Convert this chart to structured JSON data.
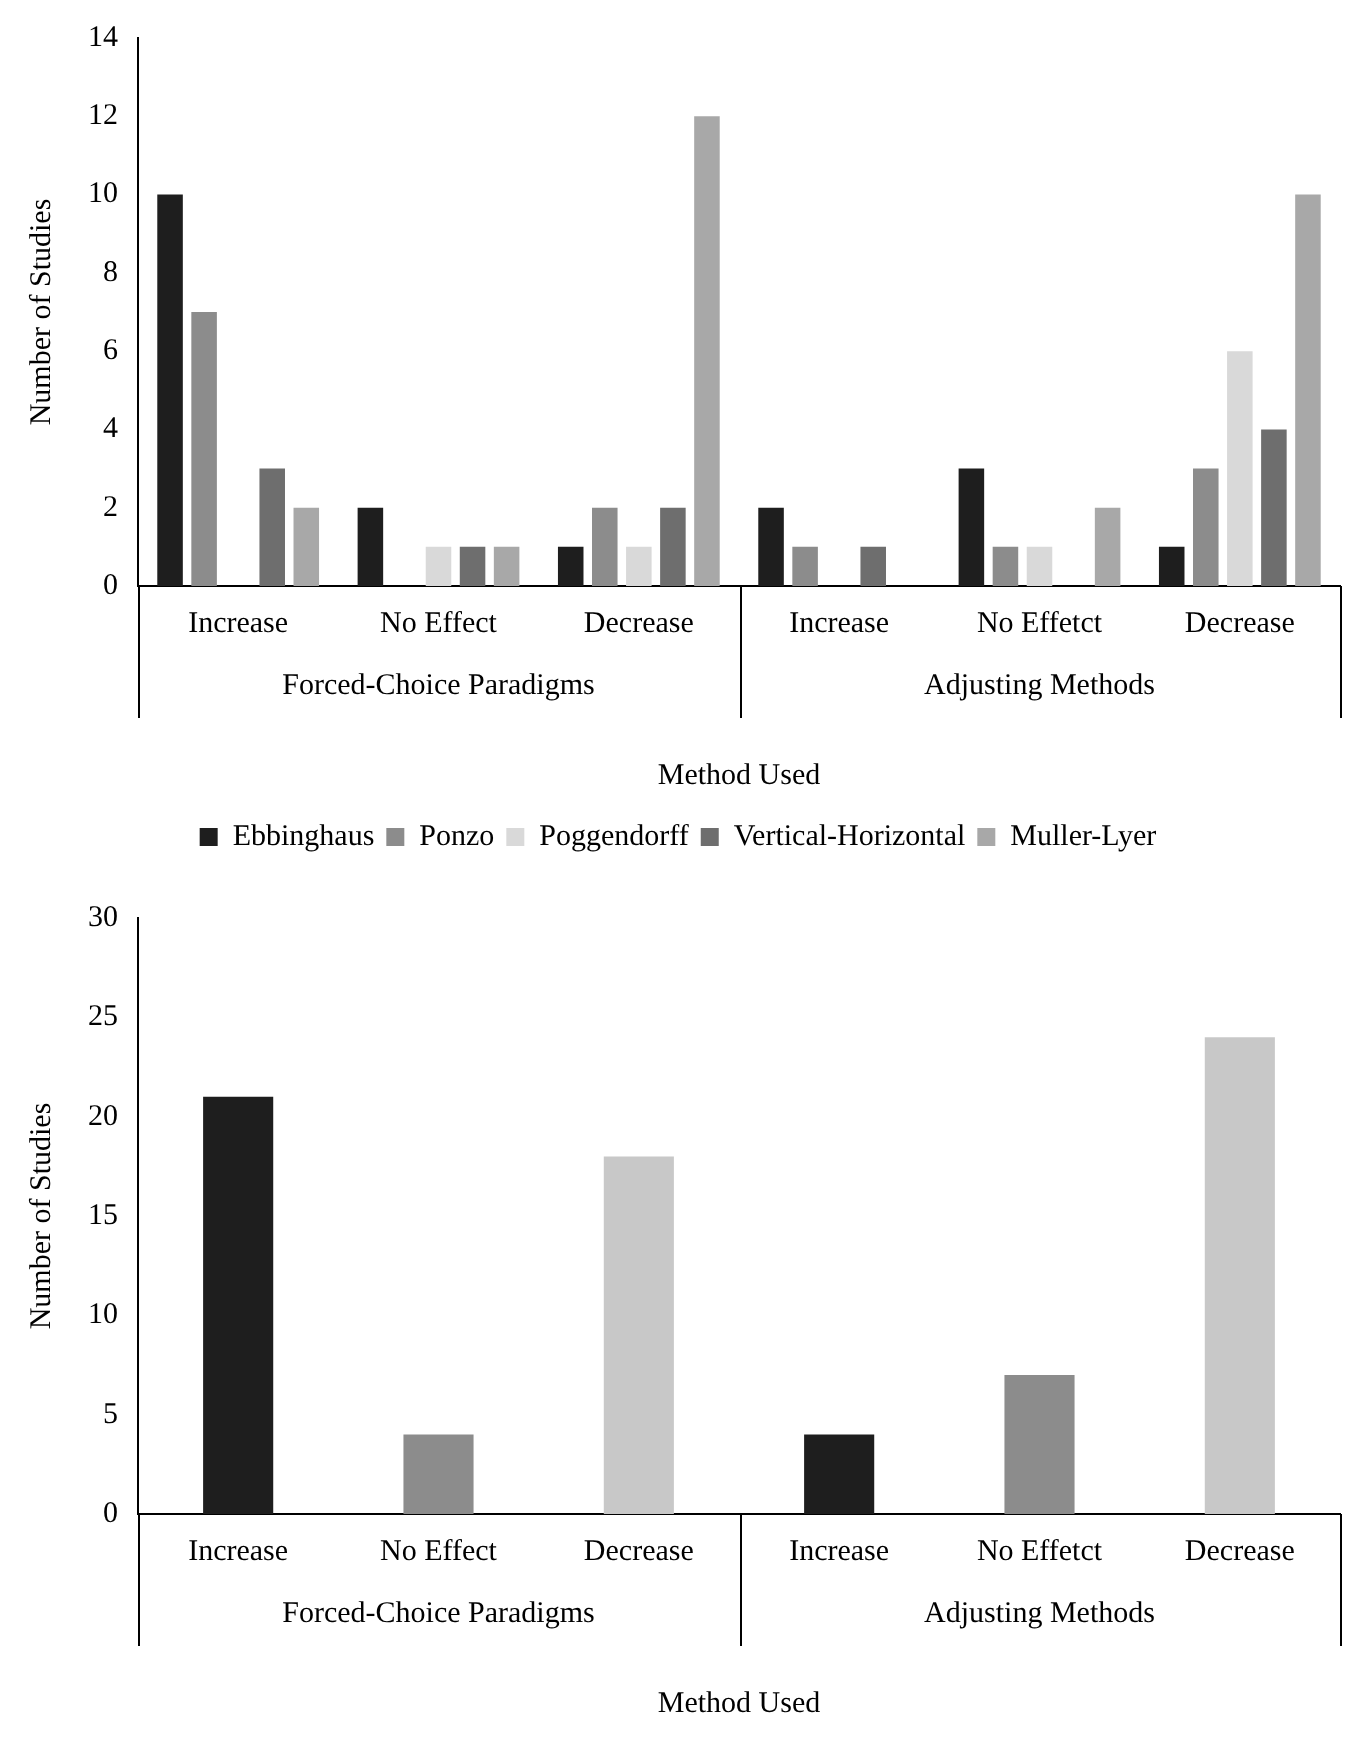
{
  "chart_data": [
    {
      "type": "bar",
      "xlabel": "Method Used",
      "ylabel": "Number of Studies",
      "categories": [
        "Increase",
        "No Effect",
        "Decrease",
        "Increase",
        "No Effetct",
        "Decrease"
      ],
      "series": [
        {
          "name": "Ebbinghaus",
          "color": "#1e1e1e",
          "values": [
            10,
            2,
            1,
            2,
            3,
            1
          ]
        },
        {
          "name": "Ponzo",
          "color": "#8c8c8c",
          "values": [
            7,
            0,
            2,
            1,
            1,
            3
          ]
        },
        {
          "name": "Poggendorff",
          "color": "#d9d9d9",
          "values": [
            0,
            1,
            1,
            0,
            1,
            6
          ]
        },
        {
          "name": "Vertical-Horizontal",
          "color": "#6e6e6e",
          "values": [
            3,
            1,
            2,
            1,
            0,
            4
          ]
        },
        {
          "name": "Muller-Lyer",
          "color": "#a8a8a8",
          "values": [
            2,
            1,
            12,
            0,
            2,
            10
          ]
        }
      ],
      "ylim": [
        0,
        14
      ],
      "yticks": [
        0,
        2,
        4,
        6,
        8,
        10,
        12,
        14
      ],
      "grid": false,
      "legend": "bottom",
      "annotations": [
        "Forced-Choice Paradigms",
        "Adjusting Methods"
      ]
    },
    {
      "type": "bar",
      "xlabel": "Method Used",
      "ylabel": "Number of Studies",
      "categories": [
        "Increase",
        "No Effect",
        "Decrease",
        "Increase",
        "No Effetct",
        "Decrease"
      ],
      "values": [
        21,
        4,
        18,
        4,
        7,
        24
      ],
      "colors": [
        "#1e1e1e",
        "#8c8c8c",
        "#c8c8c8",
        "#1e1e1e",
        "#8c8c8c",
        "#c8c8c8"
      ],
      "ylim": [
        0,
        30
      ],
      "yticks": [
        0,
        5,
        10,
        15,
        20,
        25,
        30
      ],
      "grid": false,
      "legend": false,
      "annotations": [
        "Forced-Choice Paradigms",
        "Adjusting Methods"
      ]
    }
  ]
}
